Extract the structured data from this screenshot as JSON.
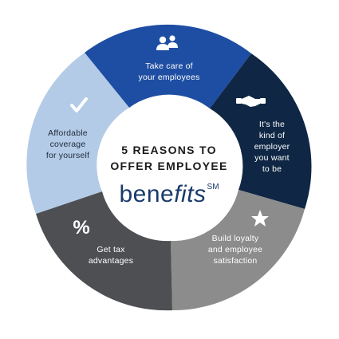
{
  "segments": [
    {
      "key": "take_care",
      "lines": [
        "Take care of",
        "your employees"
      ],
      "icon": "people-icon",
      "color": "#1e4ea3"
    },
    {
      "key": "kind_employer",
      "lines": [
        "It's the",
        "kind of",
        "employer",
        "you want",
        "to be"
      ],
      "icon": "handshake-icon",
      "color": "#0f2744"
    },
    {
      "key": "loyalty",
      "lines": [
        "Build loyalty",
        "and employee",
        "satisfaction"
      ],
      "icon": "star-icon",
      "color": "#8c8c8c"
    },
    {
      "key": "tax",
      "lines": [
        "Get tax",
        "advantages"
      ],
      "icon": "percent-icon",
      "color": "#4d4f52"
    },
    {
      "key": "coverage",
      "lines": [
        "Affordable",
        "coverage",
        "for yourself"
      ],
      "icon": "checkmark-icon",
      "color": "#b3cbe6"
    }
  ],
  "center": {
    "line1": "5 REASONS TO",
    "line2": "OFFER EMPLOYEE",
    "brand_plain": "bene",
    "brand_italic": "fits",
    "brand_mark": "SM"
  }
}
